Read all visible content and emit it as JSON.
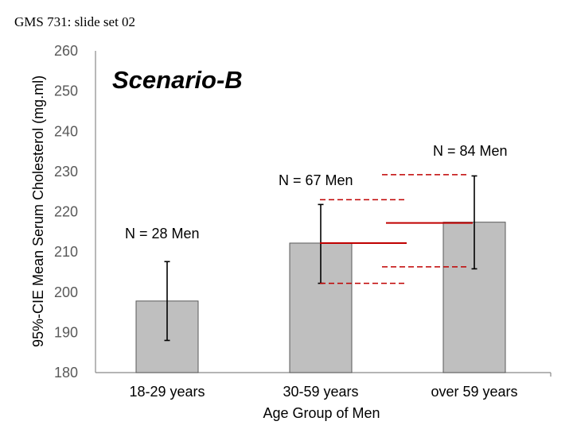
{
  "slide": {
    "header": "GMS 731: slide set 02"
  },
  "chart_data": {
    "type": "bar",
    "title": "Scenario-B",
    "xlabel": "Age Group of Men",
    "ylabel": "95%-CIE Mean Serum Cholesterol (mg.ml)",
    "ylim": [
      180,
      260
    ],
    "yticks": [
      "180",
      "190",
      "200",
      "210",
      "220",
      "230",
      "240",
      "250",
      "260"
    ],
    "grid": false,
    "categories": [
      "18-29 years",
      "30-59 years",
      "over 59 years"
    ],
    "values": [
      197.8,
      212.2,
      217.4
    ],
    "ci_lower": [
      188.0,
      202.2,
      205.8
    ],
    "ci_upper": [
      207.6,
      221.8,
      228.9
    ],
    "annotations": [
      "N = 28 Men",
      "N = 67 Men",
      "N = 84 Men"
    ],
    "colors": {
      "bar": "#bfbfbf",
      "bar_edge": "#595959",
      "errorbar": "#000000",
      "reference": "#c00000"
    },
    "reference_lines": [
      {
        "style": "solid",
        "value": 212.2
      },
      {
        "style": "dashed",
        "value": 202.2
      },
      {
        "style": "dashed",
        "value": 223.0
      },
      {
        "style": "solid",
        "value": 217.2
      },
      {
        "style": "dashed",
        "value": 206.3
      },
      {
        "style": "dashed",
        "value": 229.2
      }
    ]
  }
}
